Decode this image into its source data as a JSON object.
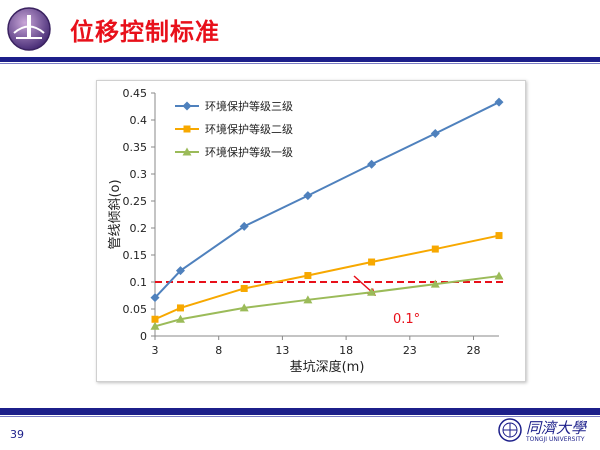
{
  "slide": {
    "title": "位移控制标准",
    "page_number": "39",
    "university_cn": "同濟大學",
    "university_en": "TONGJI UNIVERSITY"
  },
  "colors": {
    "title": "#e8101a",
    "bar": "#1c1f8a",
    "threshold": "#e8101a"
  },
  "icons": {
    "logo": "university-emblem-icon",
    "seal": "tongji-seal-icon"
  },
  "chart_data": {
    "type": "line",
    "title": "",
    "xlabel": "基坑深度(m)",
    "ylabel": "管线倾斜(o)",
    "xlim": [
      3,
      30
    ],
    "ylim": [
      0,
      0.45
    ],
    "xticks": [
      3,
      8,
      13,
      18,
      23,
      28
    ],
    "yticks": [
      0,
      0.05,
      0.1,
      0.15,
      0.2,
      0.25,
      0.3,
      0.35,
      0.4,
      0.45
    ],
    "grid": false,
    "legend_position": "top-left",
    "series": [
      {
        "name": "环境保护等级三级",
        "color": "#4f81bd",
        "marker": "diamond",
        "x": [
          3,
          5,
          10,
          15,
          20,
          25,
          30
        ],
        "y": [
          0.071,
          0.121,
          0.203,
          0.26,
          0.318,
          0.375,
          0.433
        ]
      },
      {
        "name": "环境保护等级二级",
        "color": "#f7a800",
        "marker": "square",
        "x": [
          3,
          5,
          10,
          15,
          20,
          25,
          30
        ],
        "y": [
          0.031,
          0.052,
          0.088,
          0.112,
          0.137,
          0.161,
          0.186
        ]
      },
      {
        "name": "环境保护等级一级",
        "color": "#9bbb59",
        "marker": "triangle",
        "x": [
          3,
          5,
          10,
          15,
          20,
          25,
          30
        ],
        "y": [
          0.018,
          0.031,
          0.052,
          0.067,
          0.081,
          0.096,
          0.111
        ]
      }
    ],
    "threshold": {
      "y": 0.1,
      "label": "0.1°",
      "color": "#e8101a",
      "style": "dashed"
    }
  }
}
